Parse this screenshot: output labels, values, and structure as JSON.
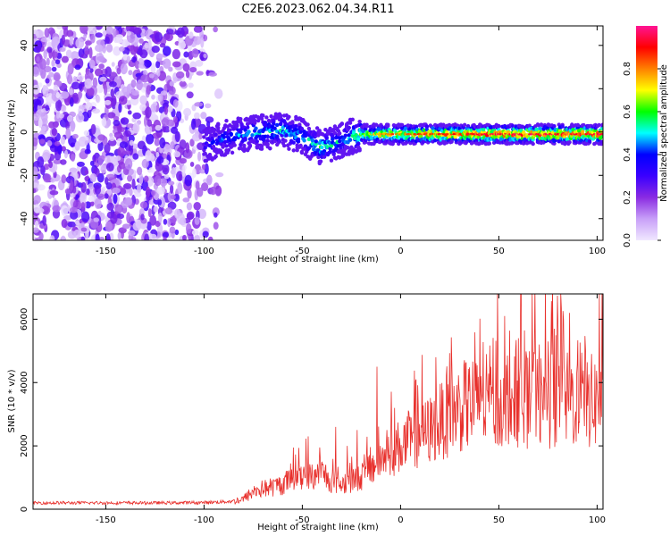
{
  "title": "C2E6.2023.062.04.34.R11",
  "chart_data": [
    {
      "type": "heatmap",
      "xlabel": "Height of straight line (km)",
      "ylabel": "Frequency (Hz)",
      "xlim": [
        -187,
        103
      ],
      "ylim": [
        -50,
        49
      ],
      "xticks": [
        -150,
        -100,
        -50,
        0,
        50,
        100
      ],
      "yticks": [
        -40,
        -20,
        0,
        20,
        40
      ],
      "colorbar": {
        "label": "Normalized spectral amplitude",
        "range": [
          0,
          1
        ],
        "ticks": [
          0.0,
          0.2,
          0.4,
          0.6,
          0.8
        ],
        "colors": [
          "#f0e8ff",
          "#c8a0f8",
          "#8a2be2",
          "#3a00ff",
          "#0000ff",
          "#00ffff",
          "#00ff00",
          "#ffff00",
          "#ff8000",
          "#ff0000",
          "#ff1493"
        ]
      },
      "noise_region": {
        "x_range": [
          -187,
          -90
        ],
        "freq_range": [
          -50,
          49
        ],
        "amplitude": 0.15
      },
      "signal_trace": {
        "x": [
          -100,
          -90,
          -80,
          -70,
          -60,
          -50,
          -45,
          -40,
          -35,
          -30,
          -25,
          -20,
          -10,
          0,
          10,
          20,
          30,
          40,
          50,
          60,
          70,
          80,
          90,
          100
        ],
        "frequency": [
          -6,
          -3,
          -1,
          0,
          1,
          -2,
          -5,
          -7,
          -6,
          -4,
          -2,
          -1,
          -1,
          -1,
          -1,
          -1,
          -1,
          -1,
          -1,
          -1,
          -1,
          -1,
          -1,
          -1
        ],
        "amplitude": [
          0.35,
          0.45,
          0.5,
          0.55,
          0.55,
          0.5,
          0.55,
          0.6,
          0.55,
          0.5,
          0.55,
          0.65,
          0.75,
          0.8,
          0.85,
          0.85,
          0.85,
          0.9,
          0.9,
          0.9,
          0.9,
          0.9,
          0.9,
          0.9
        ]
      }
    },
    {
      "type": "line",
      "xlabel": "Height of straight line (km)",
      "ylabel": "SNR (10 * v/v)",
      "xlim": [
        -187,
        103
      ],
      "ylim": [
        0,
        6800
      ],
      "xticks": [
        -150,
        -100,
        -50,
        0,
        50,
        100
      ],
      "yticks": [
        0,
        2000,
        4000,
        6000
      ],
      "line_color": "#e8302c",
      "series": [
        {
          "x": [
            -187,
            -150,
            -120,
            -100,
            -85,
            -80,
            -75,
            -70,
            -65,
            -60,
            -55,
            -50,
            -45,
            -40,
            -35,
            -30,
            -25,
            -20,
            -15,
            -10,
            -5,
            0,
            5,
            10,
            15,
            20,
            25,
            30,
            35,
            40,
            45,
            50,
            55,
            60,
            65,
            70,
            75,
            80,
            85,
            90,
            95,
            100,
            103
          ],
          "y": [
            200,
            200,
            200,
            210,
            250,
            320,
            550,
            650,
            700,
            800,
            950,
            1100,
            1050,
            1150,
            900,
            800,
            950,
            1050,
            1300,
            1600,
            1800,
            2000,
            2200,
            2350,
            2500,
            2750,
            3000,
            3200,
            3300,
            3400,
            3400,
            3450,
            3500,
            3500,
            3450,
            3450,
            3450,
            3500,
            3450,
            3450,
            3400,
            3400,
            3400
          ],
          "spikes": [
            [
              -47,
              2300
            ],
            [
              -41,
              1950
            ],
            [
              -33,
              2600
            ],
            [
              -27,
              2000
            ],
            [
              -22,
              2500
            ],
            [
              -12,
              4500
            ],
            [
              -7,
              2500
            ],
            [
              -3,
              3200
            ],
            [
              8,
              4100
            ],
            [
              18,
              4800
            ],
            [
              26,
              4600
            ],
            [
              33,
              4600
            ],
            [
              41,
              4200
            ],
            [
              46,
              4500
            ],
            [
              53,
              6100
            ],
            [
              60,
              5400
            ],
            [
              68,
              4900
            ],
            [
              75,
              5300
            ],
            [
              80,
              5700
            ],
            [
              86,
              6200
            ],
            [
              94,
              5000
            ],
            [
              101,
              6800
            ]
          ]
        }
      ]
    }
  ]
}
